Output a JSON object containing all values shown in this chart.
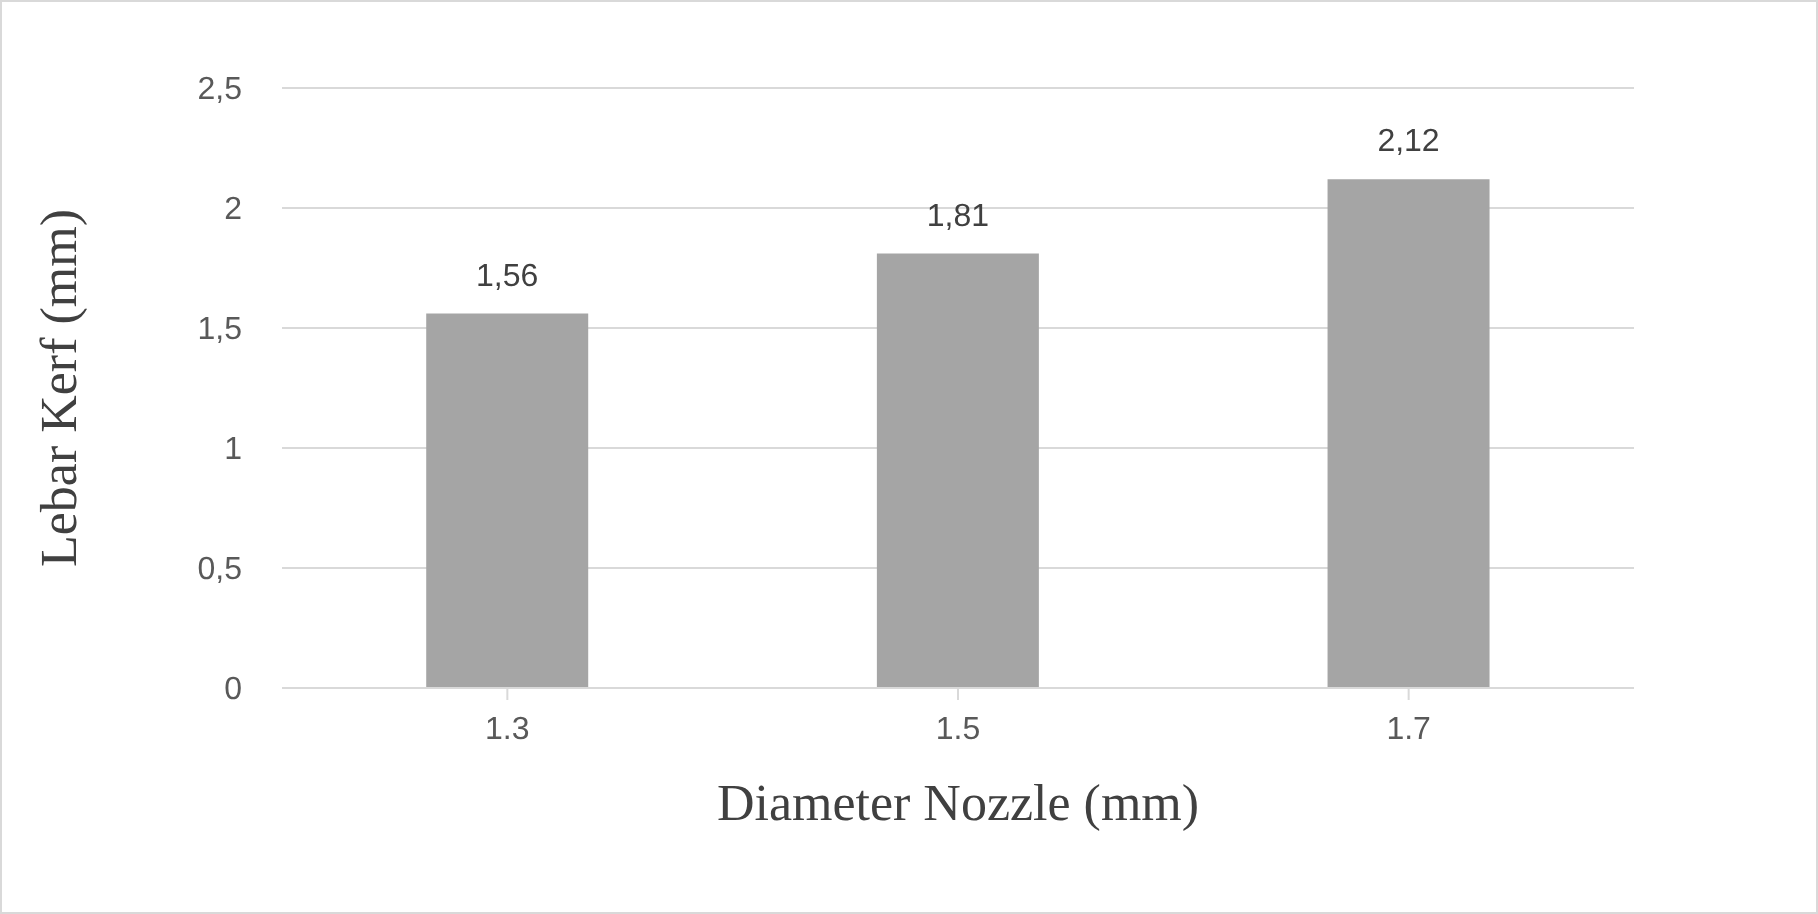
{
  "chart_data": {
    "type": "bar",
    "xlabel": "Diameter Nozzle (mm)",
    "ylabel": "Lebar Kerf (mm)",
    "categories": [
      "1.3",
      "1.5",
      "1.7"
    ],
    "values": [
      1.56,
      1.81,
      2.12
    ],
    "value_labels": [
      "1,56",
      "1,81",
      "2,12"
    ],
    "color": "#a5a5a5",
    "ylim": [
      0,
      2.5
    ],
    "yticks": [
      {
        "value": 0,
        "label": "0"
      },
      {
        "value": 0.5,
        "label": "0,5"
      },
      {
        "value": 1,
        "label": "1"
      },
      {
        "value": 1.5,
        "label": "1,5"
      },
      {
        "value": 2,
        "label": "2"
      },
      {
        "value": 2.5,
        "label": "2,5"
      }
    ],
    "grid": "y",
    "legend": false
  }
}
